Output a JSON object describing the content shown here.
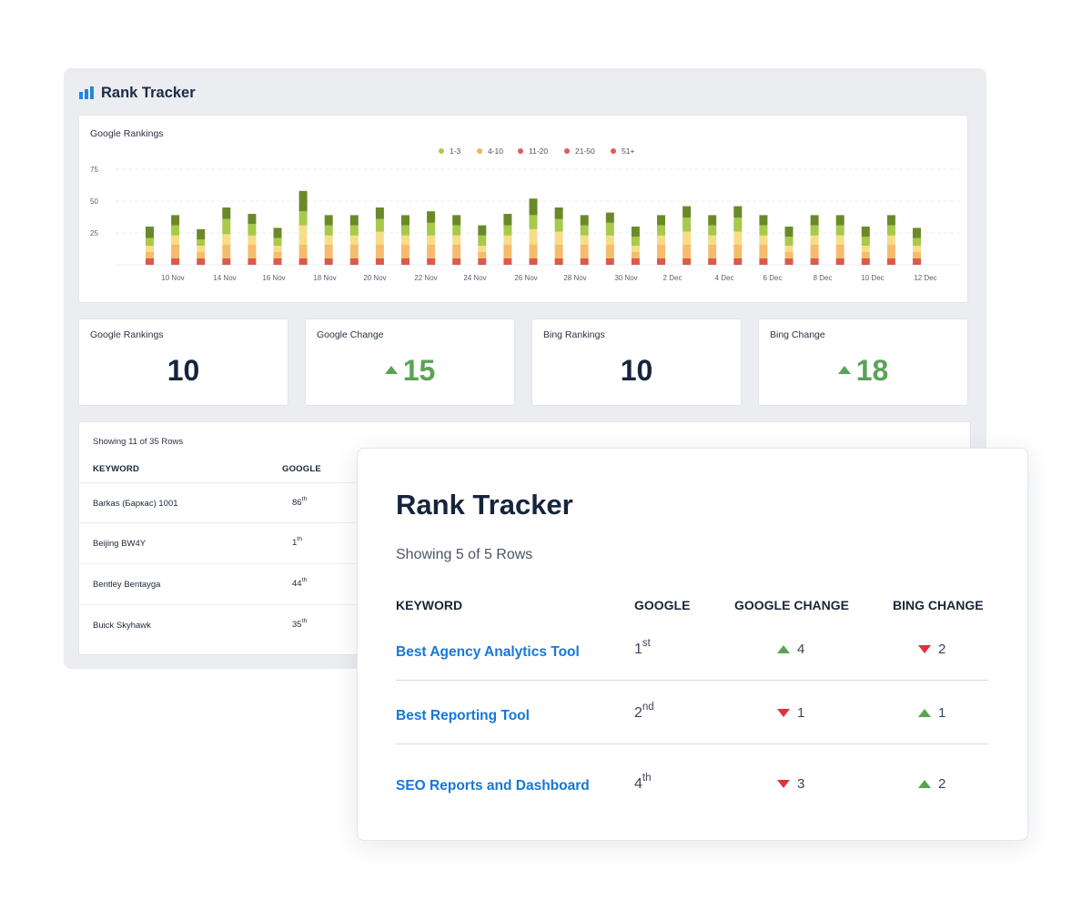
{
  "app": {
    "title": "Rank Tracker"
  },
  "chart_data": {
    "type": "bar",
    "stacked": true,
    "title": "Google Rankings",
    "legend": [
      "1-3",
      "4-10",
      "11-20",
      "21-50",
      "51+"
    ],
    "colors": {
      "51+": "#d95a4e",
      "21-50": "#f5bd6b",
      "11-20": "#f7dd8a",
      "4-10": "#a8c94a",
      "1-3": "#6a8a2a"
    },
    "legend_colors": [
      "#a6cc4a",
      "#f7b350",
      "#e25c55",
      "#e25c55",
      "#e25c55"
    ],
    "yticks": [
      25,
      50,
      75
    ],
    "ylim": [
      0,
      80
    ],
    "xtick_labels": [
      "10 Nov",
      "14 Nov",
      "16 Nov",
      "18 Nov",
      "20 Nov",
      "22 Nov",
      "24 Nov",
      "26 Nov",
      "28 Nov",
      "30 Nov",
      "2 Dec",
      "4 Dec",
      "6 Dec",
      "8 Dec",
      "10 Dec",
      "12 Dec"
    ],
    "series": [
      {
        "name": "51+",
        "values": [
          5,
          5,
          5,
          5,
          5,
          5,
          5,
          5,
          5,
          5,
          5,
          5,
          5,
          5,
          5,
          5,
          5,
          5,
          5,
          5,
          5,
          5,
          5,
          5,
          5,
          5,
          5,
          5,
          5,
          5,
          5
        ]
      },
      {
        "name": "21-50",
        "values": [
          5,
          11,
          5,
          11,
          11,
          5,
          11,
          11,
          11,
          11,
          11,
          11,
          11,
          5,
          11,
          11,
          11,
          11,
          11,
          5,
          11,
          11,
          11,
          11,
          11,
          5,
          11,
          11,
          5,
          11,
          5
        ]
      },
      {
        "name": "11-20",
        "values": [
          5,
          7,
          5,
          8,
          7,
          5,
          15,
          7,
          7,
          10,
          7,
          7,
          7,
          5,
          7,
          12,
          10,
          7,
          7,
          5,
          7,
          10,
          7,
          10,
          7,
          5,
          7,
          7,
          5,
          7,
          5
        ]
      },
      {
        "name": "4-10",
        "values": [
          6,
          8,
          5,
          12,
          9,
          6,
          11,
          8,
          8,
          10,
          8,
          10,
          8,
          8,
          8,
          11,
          10,
          8,
          10,
          7,
          8,
          11,
          8,
          11,
          8,
          7,
          8,
          8,
          7,
          8,
          6
        ]
      },
      {
        "name": "1-3",
        "values": [
          9,
          8,
          8,
          9,
          8,
          8,
          16,
          8,
          8,
          9,
          8,
          9,
          8,
          8,
          9,
          13,
          9,
          8,
          8,
          8,
          8,
          9,
          8,
          9,
          8,
          8,
          8,
          8,
          8,
          8,
          8
        ]
      }
    ]
  },
  "stats": [
    {
      "label": "Google Rankings",
      "value": "10",
      "kind": "number"
    },
    {
      "label": "Google Change",
      "value": "15",
      "kind": "change"
    },
    {
      "label": "Bing Rankings",
      "value": "10",
      "kind": "number"
    },
    {
      "label": "Bing Change",
      "value": "18",
      "kind": "change"
    }
  ],
  "back_table": {
    "showing": "Showing 11 of 35 Rows",
    "headers": {
      "keyword": "KEYWORD",
      "google": "GOOGLE"
    },
    "rows": [
      {
        "keyword": "Barkas (Баркас) 1001",
        "rank": "86",
        "suffix": "th"
      },
      {
        "keyword": "Beijing BW4Y",
        "rank": "1",
        "suffix": "th"
      },
      {
        "keyword": "Bentley Bentayga",
        "rank": "44",
        "suffix": "th"
      },
      {
        "keyword": "Buick Skyhawk",
        "rank": "35",
        "suffix": "th"
      }
    ]
  },
  "front_table": {
    "title": "Rank Tracker",
    "showing": "Showing 5 of 5 Rows",
    "headers": {
      "keyword": "KEYWORD",
      "google": "GOOGLE",
      "google_change": "GOOGLE CHANGE",
      "bing_change": "BING CHANGE"
    },
    "rows": [
      {
        "keyword": "Best Agency Analytics Tool",
        "rank": "1",
        "suffix": "st",
        "google_change": "4",
        "google_dir": "up",
        "bing_change": "2",
        "bing_dir": "down"
      },
      {
        "keyword": "Best Reporting Tool",
        "rank": "2",
        "suffix": "nd",
        "google_change": "1",
        "google_dir": "down",
        "bing_change": "1",
        "bing_dir": "up"
      },
      {
        "keyword": "SEO Reports and Dashboard",
        "rank": "4",
        "suffix": "th",
        "google_change": "3",
        "google_dir": "down",
        "bing_change": "2",
        "bing_dir": "up"
      }
    ]
  }
}
